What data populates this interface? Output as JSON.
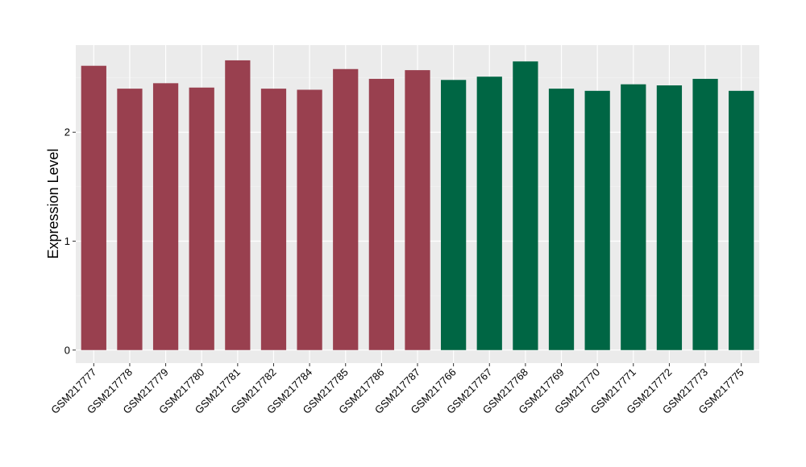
{
  "chart_data": {
    "type": "bar",
    "title": "",
    "xlabel": "",
    "ylabel": "Expression Level",
    "ylim": [
      -0.12,
      2.8
    ],
    "yticks": [
      0,
      1,
      2
    ],
    "grid": true,
    "legend": "none",
    "panel_background": "#EBEBEB",
    "categories": [
      "GSM217777",
      "GSM217778",
      "GSM217779",
      "GSM217780",
      "GSM217781",
      "GSM217782",
      "GSM217784",
      "GSM217785",
      "GSM217786",
      "GSM217787",
      "GSM217766",
      "GSM217767",
      "GSM217768",
      "GSM217769",
      "GSM217770",
      "GSM217771",
      "GSM217772",
      "GSM217773",
      "GSM217775"
    ],
    "values": [
      2.61,
      2.4,
      2.45,
      2.41,
      2.66,
      2.4,
      2.39,
      2.58,
      2.49,
      2.57,
      2.48,
      2.51,
      2.65,
      2.4,
      2.38,
      2.44,
      2.43,
      2.49,
      2.38
    ],
    "colors": [
      "#99404F",
      "#99404F",
      "#99404F",
      "#99404F",
      "#99404F",
      "#99404F",
      "#99404F",
      "#99404F",
      "#99404F",
      "#99404F",
      "#006644",
      "#006644",
      "#006644",
      "#006644",
      "#006644",
      "#006644",
      "#006644",
      "#006644",
      "#006644"
    ]
  }
}
